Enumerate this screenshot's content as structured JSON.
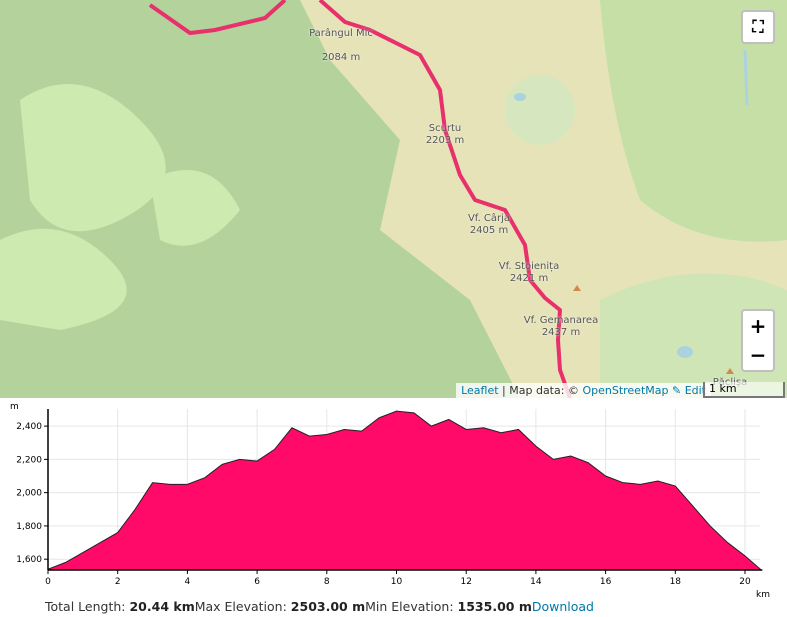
{
  "map": {
    "peaks": [
      {
        "name": "Parângul Mic",
        "elevation": "2084 m"
      },
      {
        "name": "Scurtu",
        "elevation": "2203 m"
      },
      {
        "name": "Vf. Cârja",
        "elevation": "2405 m"
      },
      {
        "name": "Vf. Stoienița",
        "elevation": "2421 m"
      },
      {
        "name": "Vf. Gemanarea",
        "elevation": "2437 m"
      },
      {
        "name": "Păclișa",
        "elevation": null
      }
    ],
    "zoom_in": "+",
    "zoom_out": "−",
    "attribution": {
      "leaflet": "Leaflet",
      "text": "| Map data: ©",
      "osm": "OpenStreetMap",
      "edit": "✎ Edit"
    },
    "scale": "1 km"
  },
  "elevation_chart": {
    "type": "area",
    "y_unit": "m",
    "x_unit": "km",
    "color": "#ff0a68",
    "x": [
      0,
      0.5,
      1,
      1.5,
      2,
      2.5,
      3,
      3.5,
      4,
      4.5,
      5,
      5.5,
      6,
      6.5,
      7,
      7.5,
      8,
      8.5,
      9,
      9.5,
      10,
      10.5,
      11,
      11.5,
      12,
      12.5,
      13,
      13.5,
      14,
      14.5,
      15,
      15.5,
      16,
      16.5,
      17,
      17.5,
      18,
      18.5,
      19,
      19.5,
      20,
      20.44
    ],
    "values": [
      1540,
      1580,
      1640,
      1700,
      1760,
      1900,
      2060,
      2050,
      2050,
      2090,
      2170,
      2200,
      2190,
      2260,
      2390,
      2340,
      2350,
      2380,
      2370,
      2450,
      2490,
      2480,
      2400,
      2440,
      2380,
      2390,
      2360,
      2380,
      2280,
      2200,
      2220,
      2180,
      2100,
      2060,
      2050,
      2070,
      2040,
      1920,
      1800,
      1700,
      1620,
      1540
    ],
    "xlim": [
      0,
      20.44
    ],
    "ylim": [
      1535,
      2503
    ],
    "xticks": [
      0,
      2,
      4,
      6,
      8,
      10,
      12,
      14,
      16,
      18,
      20
    ],
    "yticks": [
      {
        "value": 1600,
        "label": "1,600"
      },
      {
        "value": 1800,
        "label": "1,800"
      },
      {
        "value": 2000,
        "label": "2,000"
      },
      {
        "value": 2200,
        "label": "2,200"
      },
      {
        "value": 2400,
        "label": "2,400"
      }
    ],
    "grid": true
  },
  "summary": [
    {
      "label": "Total Length:",
      "value": "20.44 km"
    },
    {
      "label": "Max Elevation:",
      "value": "2503.00 m"
    },
    {
      "label": "Min Elevation:",
      "value": "1535.00 m"
    }
  ],
  "download": "Download"
}
